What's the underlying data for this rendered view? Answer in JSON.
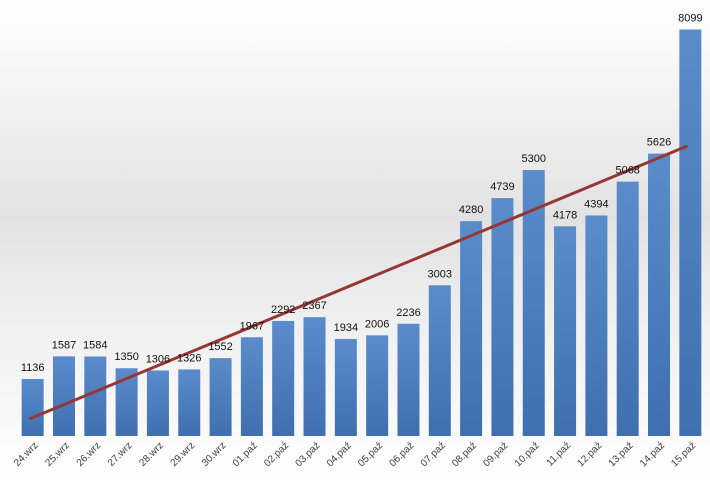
{
  "chart_data": {
    "type": "bar",
    "categories": [
      "24.wrz",
      "25.wrz",
      "26.wrz",
      "27.wrz",
      "28.wrz",
      "29.wrz",
      "30.wrz",
      "01.paź",
      "02.paź",
      "03.paź",
      "04.paź",
      "05.paź",
      "06.paź",
      "07.paź",
      "08.paź",
      "09.paź",
      "10.paź",
      "11.paź",
      "12.paź",
      "13.paź",
      "14.paź",
      "15.paź"
    ],
    "series": [
      {
        "values": [
          1136,
          1587,
          1584,
          1350,
          1306,
          1326,
          1552,
          1967,
          2292,
          2367,
          1934,
          2006,
          2236,
          3003,
          4280,
          4739,
          5300,
          4178,
          4394,
          5068,
          5626,
          8099
        ],
        "color": "#4f81bd"
      }
    ],
    "trendline": {
      "type": "linear",
      "color": "#953735"
    },
    "ylim": [
      0,
      8500
    ],
    "grid": false,
    "legend": "none",
    "data_labels": true,
    "background": "gradient-light-gray"
  }
}
